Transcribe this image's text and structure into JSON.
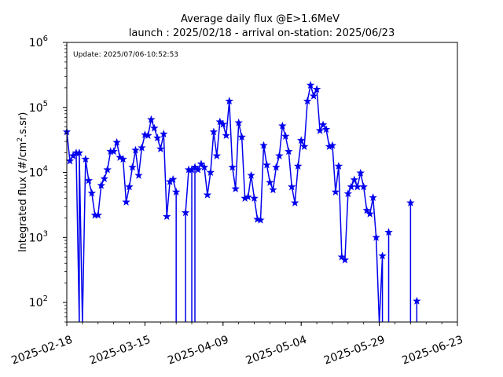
{
  "chart_data": {
    "type": "line",
    "title": "Average daily flux @E>1.6MeV",
    "subtitle": "launch : 2025/02/18 - arrival on-station: 2025/06/23",
    "annotation": "Update: 2025/07/06-10:52:53",
    "xlabel": "",
    "ylabel": "Integrated flux (#/cm",
    "ylabel_sup": "2",
    "ylabel_tail": ".s.sr)",
    "yscale": "log",
    "ylim": [
      50,
      1000000
    ],
    "xlim": [
      "2025-02-18",
      "2025-06-23"
    ],
    "x_ticks": [
      "2025-02-18",
      "2025-03-15",
      "2025-04-09",
      "2025-05-04",
      "2025-05-29",
      "2025-06-23"
    ],
    "y_ticks": [
      {
        "value": 100,
        "base": "10",
        "exp": "2"
      },
      {
        "value": 1000,
        "base": "10",
        "exp": "3"
      },
      {
        "value": 10000,
        "base": "10",
        "exp": "4"
      },
      {
        "value": 100000,
        "base": "10",
        "exp": "5"
      },
      {
        "value": 1000000,
        "base": "10",
        "exp": "6"
      }
    ],
    "grid": false,
    "color": "#0000ee",
    "marker": "star",
    "series": [
      {
        "name": "",
        "points": [
          [
            "2025-02-18",
            42000
          ],
          [
            "2025-02-19",
            15000
          ],
          [
            "2025-02-20",
            18000
          ],
          [
            "2025-02-21",
            20000
          ],
          [
            "2025-02-22",
            0
          ],
          [
            "2025-02-22",
            20000
          ],
          [
            "2025-02-23",
            0
          ],
          [
            "2025-02-24",
            16000
          ],
          [
            "2025-02-25",
            7500
          ],
          [
            "2025-02-26",
            4800
          ],
          [
            "2025-02-27",
            2200
          ],
          [
            "2025-02-28",
            2200
          ],
          [
            "2025-03-01",
            6300
          ],
          [
            "2025-03-02",
            8000
          ],
          [
            "2025-03-03",
            11000
          ],
          [
            "2025-03-04",
            21000
          ],
          [
            "2025-03-05",
            21000
          ],
          [
            "2025-03-06",
            29000
          ],
          [
            "2025-03-07",
            17000
          ],
          [
            "2025-03-08",
            16000
          ],
          [
            "2025-03-09",
            3500
          ],
          [
            "2025-03-10",
            6000
          ],
          [
            "2025-03-11",
            12000
          ],
          [
            "2025-03-12",
            22000
          ],
          [
            "2025-03-13",
            9000
          ],
          [
            "2025-03-14",
            24000
          ],
          [
            "2025-03-15",
            38000
          ],
          [
            "2025-03-16",
            37000
          ],
          [
            "2025-03-17",
            65000
          ],
          [
            "2025-03-18",
            48000
          ],
          [
            "2025-03-19",
            34000
          ],
          [
            "2025-03-20",
            23000
          ],
          [
            "2025-03-21",
            39000
          ],
          [
            "2025-03-22",
            2100
          ],
          [
            "2025-03-23",
            7200
          ],
          [
            "2025-03-24",
            7800
          ],
          [
            "2025-03-25",
            5000
          ],
          [
            "2025-03-25",
            0
          ],
          [
            "2025-03-28",
            0
          ],
          [
            "2025-03-28",
            2400
          ],
          [
            "2025-03-29",
            11000
          ],
          [
            "2025-03-30",
            11000
          ],
          [
            "2025-03-30",
            0
          ],
          [
            "2025-03-31",
            0
          ],
          [
            "2025-03-31",
            12000
          ],
          [
            "2025-04-01",
            11000
          ],
          [
            "2025-04-02",
            13500
          ],
          [
            "2025-04-03",
            12000
          ],
          [
            "2025-04-04",
            4500
          ],
          [
            "2025-04-05",
            10000
          ],
          [
            "2025-04-06",
            42000
          ],
          [
            "2025-04-07",
            18000
          ],
          [
            "2025-04-08",
            60000
          ],
          [
            "2025-04-09",
            55000
          ],
          [
            "2025-04-10",
            37000
          ],
          [
            "2025-04-11",
            125000
          ],
          [
            "2025-04-12",
            12000
          ],
          [
            "2025-04-13",
            5600
          ],
          [
            "2025-04-14",
            58000
          ],
          [
            "2025-04-15",
            35000
          ],
          [
            "2025-04-16",
            4000
          ],
          [
            "2025-04-17",
            4200
          ],
          [
            "2025-04-18",
            9000
          ],
          [
            "2025-04-19",
            4000
          ],
          [
            "2025-04-20",
            1900
          ],
          [
            "2025-04-21",
            1850
          ],
          [
            "2025-04-22",
            26000
          ],
          [
            "2025-04-23",
            13000
          ],
          [
            "2025-04-24",
            7000
          ],
          [
            "2025-04-25",
            5400
          ],
          [
            "2025-04-26",
            12000
          ],
          [
            "2025-04-27",
            18000
          ],
          [
            "2025-04-28",
            52000
          ],
          [
            "2025-04-29",
            36000
          ],
          [
            "2025-04-30",
            21000
          ],
          [
            "2025-05-01",
            6000
          ],
          [
            "2025-05-02",
            3400
          ],
          [
            "2025-05-03",
            12500
          ],
          [
            "2025-05-04",
            31000
          ],
          [
            "2025-05-05",
            25000
          ],
          [
            "2025-05-06",
            125000
          ],
          [
            "2025-05-07",
            220000
          ],
          [
            "2025-05-08",
            150000
          ],
          [
            "2025-05-09",
            190000
          ],
          [
            "2025-05-10",
            44000
          ],
          [
            "2025-05-11",
            54000
          ],
          [
            "2025-05-12",
            46000
          ],
          [
            "2025-05-13",
            25000
          ],
          [
            "2025-05-14",
            26000
          ],
          [
            "2025-05-15",
            5000
          ],
          [
            "2025-05-16",
            12500
          ],
          [
            "2025-05-17",
            500
          ],
          [
            "2025-05-18",
            450
          ],
          [
            "2025-05-19",
            4700
          ],
          [
            "2025-05-20",
            6000
          ],
          [
            "2025-05-21",
            7700
          ],
          [
            "2025-05-22",
            6000
          ],
          [
            "2025-05-23",
            9800
          ],
          [
            "2025-05-24",
            6000
          ],
          [
            "2025-05-25",
            2600
          ],
          [
            "2025-05-26",
            2300
          ],
          [
            "2025-05-27",
            4100
          ],
          [
            "2025-05-28",
            1000
          ],
          [
            "2025-05-29",
            0
          ],
          [
            "2025-05-30",
            520
          ],
          [
            "2025-05-30",
            0
          ],
          [
            "2025-06-01",
            0
          ],
          [
            "2025-06-01",
            1200
          ],
          [
            "2025-06-01",
            0
          ],
          [
            "2025-06-08",
            0
          ],
          [
            "2025-06-08",
            3400
          ],
          [
            "2025-06-08",
            0
          ],
          [
            "2025-06-10",
            0
          ],
          [
            "2025-06-10",
            105
          ],
          [
            "2025-06-10",
            0
          ]
        ]
      }
    ]
  }
}
